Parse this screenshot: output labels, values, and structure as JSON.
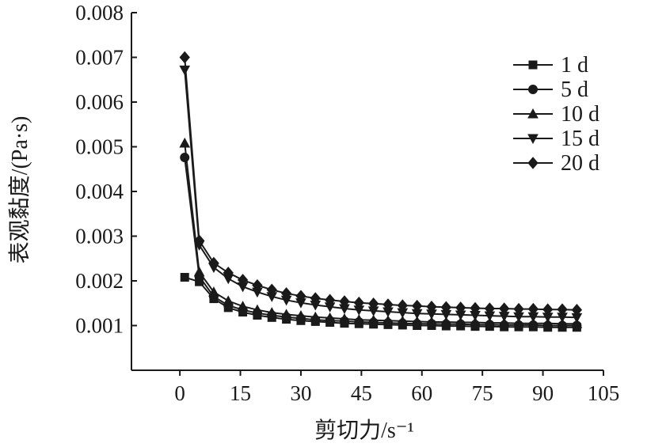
{
  "chart_data": {
    "type": "line",
    "xlabel": "剪切力/s⁻¹",
    "ylabel": "表观黏度/(Pa·s)",
    "xlim": [
      -12,
      105
    ],
    "ylim": [
      0.0,
      0.008
    ],
    "x_ticks": [
      0,
      15,
      30,
      45,
      60,
      75,
      90,
      105
    ],
    "x_tick_labels": [
      "0",
      "15",
      "30",
      "45",
      "60",
      "75",
      "90",
      "105"
    ],
    "y_ticks": [
      0.001,
      0.002,
      0.003,
      0.004,
      0.005,
      0.006,
      0.007,
      0.008
    ],
    "y_tick_labels": [
      "0.001",
      "0.002",
      "0.003",
      "0.004",
      "0.005",
      "0.006",
      "0.007",
      "0.008"
    ],
    "grid": false,
    "legend_position": "top-right",
    "x": [
      1.2,
      4.8,
      8.4,
      12.0,
      15.6,
      19.2,
      22.8,
      26.4,
      30.0,
      33.6,
      37.2,
      40.8,
      44.4,
      48.0,
      51.6,
      55.2,
      58.8,
      62.4,
      66.0,
      69.6,
      73.2,
      76.8,
      80.4,
      84.0,
      87.6,
      91.2,
      94.8,
      98.4
    ],
    "series": [
      {
        "name": "1 d",
        "marker": "square",
        "values": [
          0.00208,
          0.00198,
          0.0016,
          0.0014,
          0.0013,
          0.00123,
          0.00118,
          0.00114,
          0.00111,
          0.00109,
          0.00107,
          0.00105,
          0.00104,
          0.00103,
          0.00102,
          0.00101,
          0.001,
          0.001,
          0.00099,
          0.00099,
          0.00098,
          0.00098,
          0.00097,
          0.00097,
          0.00097,
          0.00096,
          0.00096,
          0.00096
        ]
      },
      {
        "name": "5 d",
        "marker": "circle",
        "values": [
          0.00476,
          0.0021,
          0.00165,
          0.00145,
          0.00135,
          0.00128,
          0.00123,
          0.00119,
          0.00116,
          0.00113,
          0.00111,
          0.0011,
          0.00108,
          0.00107,
          0.00106,
          0.00105,
          0.00104,
          0.00104,
          0.00103,
          0.00103,
          0.00102,
          0.00102,
          0.00101,
          0.00101,
          0.00101,
          0.001,
          0.001,
          0.001
        ]
      },
      {
        "name": "10 d",
        "marker": "triangle-up",
        "values": [
          0.00508,
          0.0022,
          0.00175,
          0.00155,
          0.00143,
          0.00135,
          0.00129,
          0.00125,
          0.00122,
          0.00119,
          0.00117,
          0.00115,
          0.00113,
          0.00112,
          0.00111,
          0.0011,
          0.00109,
          0.00108,
          0.00108,
          0.00107,
          0.00107,
          0.00106,
          0.00106,
          0.00105,
          0.00105,
          0.00105,
          0.00104,
          0.00104
        ]
      },
      {
        "name": "15 d",
        "marker": "triangle-down",
        "values": [
          0.00672,
          0.0028,
          0.0023,
          0.00205,
          0.00187,
          0.00175,
          0.00165,
          0.00157,
          0.00151,
          0.00146,
          0.00142,
          0.00138,
          0.00135,
          0.00133,
          0.00131,
          0.00129,
          0.00127,
          0.00126,
          0.00125,
          0.00124,
          0.00123,
          0.00122,
          0.00121,
          0.0012,
          0.0012,
          0.00119,
          0.00119,
          0.00118
        ]
      },
      {
        "name": "20 d",
        "marker": "diamond",
        "values": [
          0.007,
          0.0029,
          0.0024,
          0.00218,
          0.00202,
          0.0019,
          0.0018,
          0.00172,
          0.00166,
          0.00161,
          0.00157,
          0.00154,
          0.00151,
          0.00149,
          0.00147,
          0.00145,
          0.00144,
          0.00142,
          0.00141,
          0.0014,
          0.00139,
          0.00138,
          0.00138,
          0.00137,
          0.00137,
          0.00136,
          0.00136,
          0.00135
        ]
      }
    ]
  }
}
